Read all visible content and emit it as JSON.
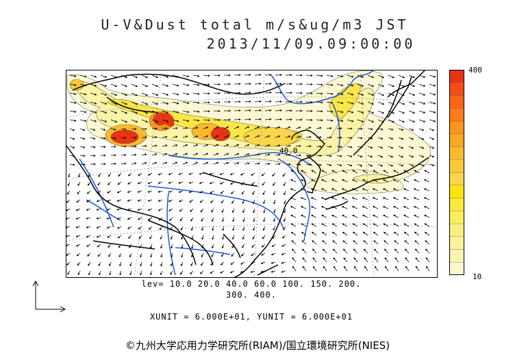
{
  "title": "U-V&Dust total m/s&ug/m3 JST",
  "datetime": "2013/11/09.09:00:00",
  "legend": {
    "max_label": "400",
    "min_label": "10",
    "colors": [
      "#fbf7cf",
      "#fbf4b2",
      "#fbf39a",
      "#fbf07f",
      "#fbee5e",
      "#fbe93a",
      "#fbe410",
      "#fbd64a",
      "#fbca3a",
      "#fbba2e",
      "#fba824",
      "#fb9420",
      "#fb7d1d",
      "#fb641a",
      "#f54c18",
      "#e83414"
    ]
  },
  "levels_line1": "lev= 10.0 20.0 40.0 60.0 100. 150. 200.",
  "levels_line2": "300. 400.",
  "units_line": "XUNIT = 6.000E+01, YUNIT = 6.000E+01",
  "contour_label": "40.0",
  "copyright": "©九州大学応用力学研究所(RIAM)/国立環境研究所(NIES)",
  "colors": {
    "land": "#ffffff",
    "coast": "#000000",
    "rivers": "#1a55e0",
    "grid": "#888888",
    "arrows": "#000000"
  }
}
